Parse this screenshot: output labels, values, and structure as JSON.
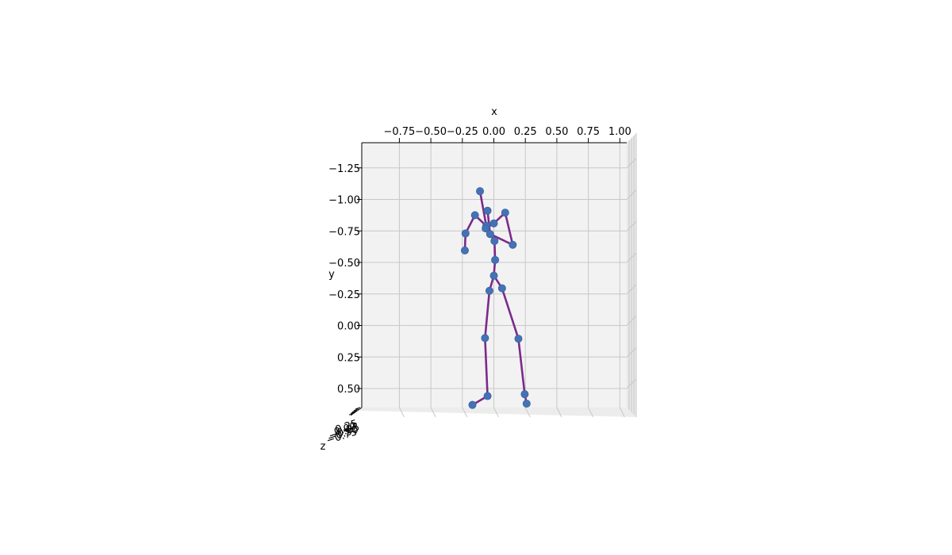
{
  "chart_data": {
    "type": "scatter",
    "subtype": "3d-skeleton",
    "xlabel": "x",
    "ylabel": "y",
    "zlabel": "z",
    "x_ticks": [
      "−0.75",
      "−0.50",
      "−0.25",
      "0.00",
      "0.25",
      "0.50",
      "0.75",
      "1.00"
    ],
    "x_tick_values": [
      -0.75,
      -0.5,
      -0.25,
      0.0,
      0.25,
      0.5,
      0.75,
      1.0
    ],
    "y_ticks": [
      "−1.25",
      "−1.00",
      "−0.75",
      "−0.50",
      "−0.25",
      "0.00",
      "0.25",
      "0.50"
    ],
    "y_tick_values": [
      -1.25,
      -1.0,
      -0.75,
      -0.5,
      -0.25,
      0.0,
      0.25,
      0.5
    ],
    "z_ticks": [
      "−0.75",
      "−0.50",
      "−0.25",
      "0.00",
      "0.25"
    ],
    "xlim": [
      -1.05,
      1.05
    ],
    "ylim": [
      -1.42,
      0.65
    ],
    "y_inverted": true,
    "grid": true,
    "colors": {
      "bone": "#7b2a8b",
      "joint": "#4472b4",
      "pane": "#f2f2f2",
      "grid": "#c8c8c8"
    },
    "joints": [
      {
        "x": -0.11,
        "y": -1.065
      },
      {
        "x": -0.05,
        "y": -0.91
      },
      {
        "x": -0.15,
        "y": -0.875
      },
      {
        "x": 0.09,
        "y": -0.895
      },
      {
        "x": 0.0,
        "y": -0.81
      },
      {
        "x": -0.06,
        "y": -0.79
      },
      {
        "x": -0.065,
        "y": -0.77
      },
      {
        "x": -0.225,
        "y": -0.73
      },
      {
        "x": -0.03,
        "y": -0.725
      },
      {
        "x": 0.005,
        "y": -0.67
      },
      {
        "x": 0.15,
        "y": -0.64
      },
      {
        "x": -0.23,
        "y": -0.595
      },
      {
        "x": 0.01,
        "y": -0.52
      },
      {
        "x": 0.0,
        "y": -0.395
      },
      {
        "x": 0.065,
        "y": -0.295
      },
      {
        "x": -0.035,
        "y": -0.275
      },
      {
        "x": 0.195,
        "y": 0.105
      },
      {
        "x": -0.07,
        "y": 0.1
      },
      {
        "x": 0.245,
        "y": 0.545
      },
      {
        "x": -0.05,
        "y": 0.56
      },
      {
        "x": 0.26,
        "y": 0.62
      },
      {
        "x": -0.17,
        "y": 0.63
      }
    ],
    "bones": [
      [
        0,
        5
      ],
      [
        5,
        8
      ],
      [
        1,
        8
      ],
      [
        5,
        2
      ],
      [
        2,
        7
      ],
      [
        7,
        11
      ],
      [
        6,
        4
      ],
      [
        4,
        3
      ],
      [
        3,
        10
      ],
      [
        10,
        8
      ],
      [
        8,
        9
      ],
      [
        9,
        12
      ],
      [
        12,
        13
      ],
      [
        13,
        15
      ],
      [
        15,
        17
      ],
      [
        17,
        19
      ],
      [
        19,
        21
      ],
      [
        13,
        14
      ],
      [
        14,
        16
      ],
      [
        16,
        18
      ],
      [
        18,
        20
      ]
    ]
  }
}
